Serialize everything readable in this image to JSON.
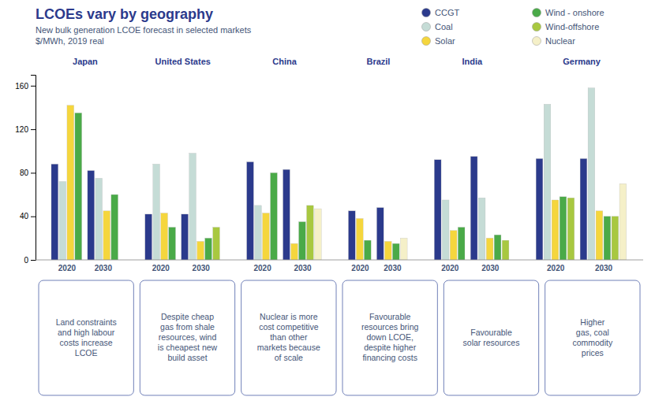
{
  "chart_data": {
    "type": "bar",
    "title": "LCOEs vary by geography",
    "subtitle": "New bulk generation LCOE forecast in selected markets\n$/MWh, 2019 real",
    "groups": [
      "Japan",
      "United States",
      "China",
      "Brazil",
      "India",
      "Germany"
    ],
    "categories": [
      "2020",
      "2030",
      "2020",
      "2030",
      "2020",
      "2030",
      "2020",
      "2030",
      "2020",
      "2030",
      "2020",
      "2030"
    ],
    "series": [
      {
        "name": "CCGT",
        "color": "#2b3a8c",
        "values": [
          88,
          82,
          42,
          42,
          90,
          83,
          45,
          48,
          92,
          95,
          93,
          93
        ]
      },
      {
        "name": "Coal",
        "color": "#c5dcd6",
        "values": [
          72,
          75,
          88,
          98,
          50,
          null,
          null,
          null,
          55,
          57,
          143,
          158
        ]
      },
      {
        "name": "Solar",
        "color": "#f5d63d",
        "values": [
          142,
          45,
          43,
          17,
          43,
          15,
          38,
          17,
          27,
          20,
          55,
          45
        ]
      },
      {
        "name": "Wind - onshore",
        "color": "#4aaa48",
        "values": [
          135,
          60,
          30,
          20,
          80,
          35,
          18,
          15,
          30,
          23,
          58,
          40
        ]
      },
      {
        "name": "Wind-offshore",
        "color": "#a8c840",
        "values": [
          null,
          null,
          null,
          30,
          null,
          50,
          null,
          null,
          null,
          18,
          57,
          40
        ]
      },
      {
        "name": "Nuclear",
        "color": "#f5f0c8",
        "values": [
          null,
          null,
          null,
          null,
          null,
          47,
          null,
          20,
          null,
          null,
          null,
          70
        ]
      }
    ],
    "ylim": [
      0,
      170
    ],
    "yticks": [
      0,
      40,
      80,
      120,
      160
    ],
    "grid": false,
    "annotations": [
      "Land constraints\nand high labour\ncosts increase\nLCOE",
      "Despite cheap\ngas from shale\nresources, wind\nis cheapest new\nbuild asset",
      "Nuclear is more\ncost competitive\nthan other\nmarkets because\nof scale",
      "Favourable\nresources bring\ndown LCOE,\ndespite higher\nfinancing costs",
      "Favourable\nsolar resources",
      "Higher\ngas, coal\ncommodity\nprices"
    ]
  }
}
